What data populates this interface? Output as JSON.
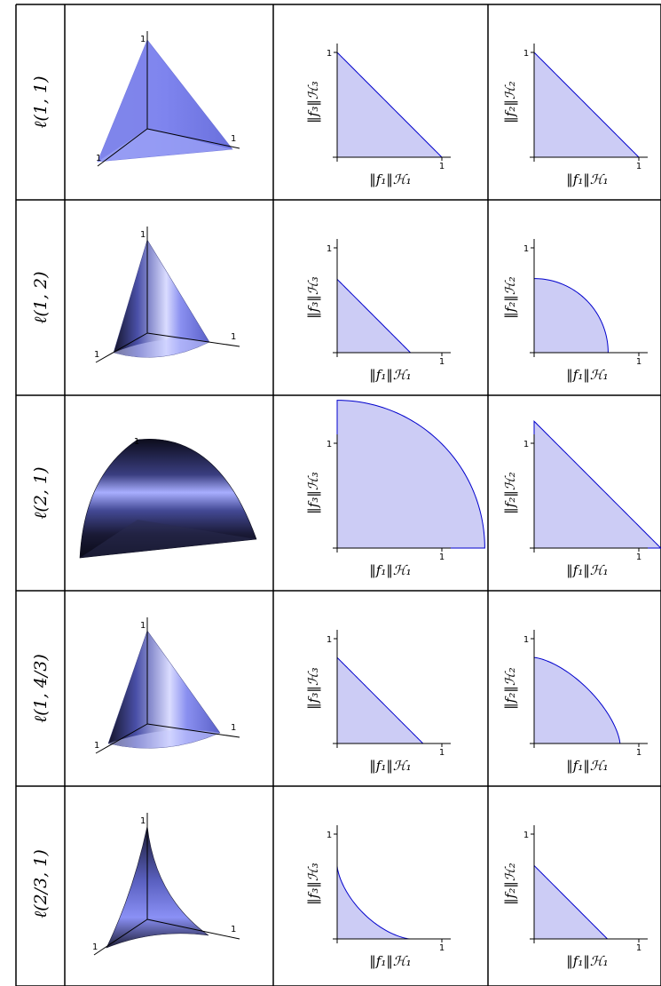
{
  "figure": {
    "tick_one": "1",
    "axis_labels": {
      "f1": "‖f₁‖ℋ₁",
      "f2": "‖f₂‖ℋ₂",
      "f3": "‖f₃‖ℋ₃"
    },
    "rows": [
      {
        "norm": "ℓ(1, 1)",
        "p": 1,
        "q": 1
      },
      {
        "norm": "ℓ(1, 2)",
        "p": 1,
        "q": 2
      },
      {
        "norm": "ℓ(2, 1)",
        "p": 2,
        "q": 1
      },
      {
        "norm": "ℓ(1, 4/3)",
        "p": 1,
        "q": 1.333
      },
      {
        "norm": "ℓ(2/3, 1)",
        "p": 0.667,
        "q": 1
      }
    ],
    "colors": {
      "fill": "#ccccf5",
      "curve": "#0000cc",
      "surface_light": "#a0a6ff",
      "surface_mid": "#6a72e0",
      "surface_dark": "#1a1a33"
    }
  }
}
